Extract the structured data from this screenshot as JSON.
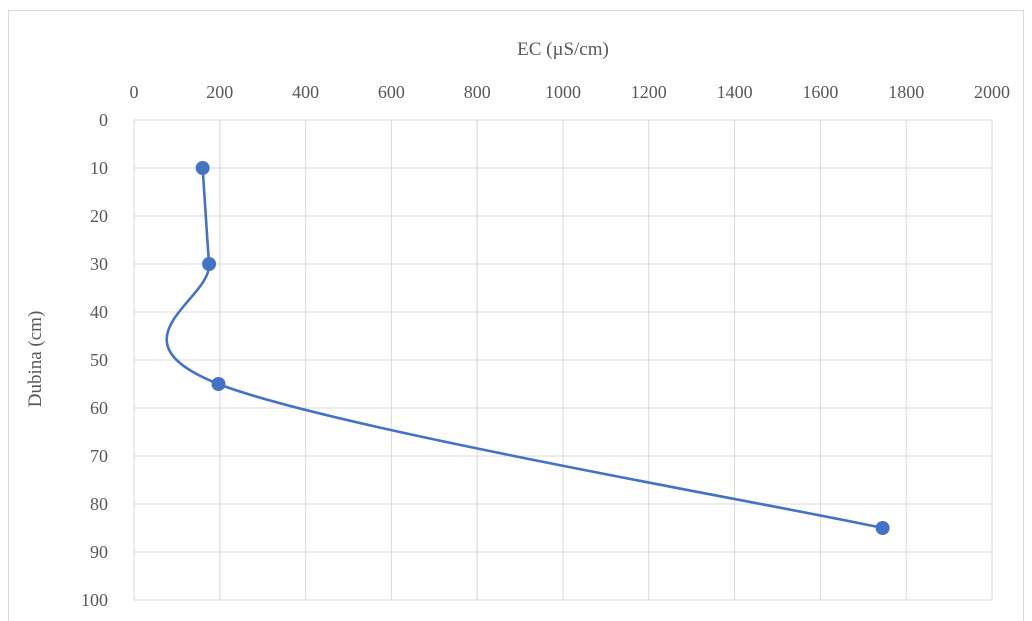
{
  "chart_data": {
    "type": "line",
    "title": "",
    "xlabel": "EC (µS/cm)",
    "ylabel": "Dubina (cm)",
    "xlim": [
      0,
      2000
    ],
    "ylim": [
      0,
      100
    ],
    "y_inverted": true,
    "x_axis_position": "top",
    "grid": true,
    "x_ticks": [
      "0",
      "200",
      "400",
      "600",
      "800",
      "1000",
      "1200",
      "1400",
      "1600",
      "1800",
      "2000"
    ],
    "y_ticks": [
      "0",
      "10",
      "20",
      "30",
      "40",
      "50",
      "60",
      "70",
      "80",
      "90",
      "100"
    ],
    "smooth": true,
    "series": [
      {
        "color": "#4472c4",
        "points": [
          {
            "x": 160,
            "y": 10
          },
          {
            "x": 175,
            "y": 30
          },
          {
            "x": 197,
            "y": 55
          },
          {
            "x": 1745,
            "y": 85
          }
        ]
      }
    ]
  }
}
